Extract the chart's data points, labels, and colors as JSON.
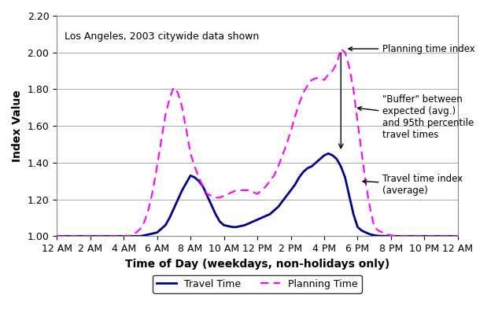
{
  "title_annotation": "Los Angeles, 2003 citywide data shown",
  "xlabel": "Time of Day (weekdays, non-holidays only)",
  "ylabel": "Index Value",
  "ylim": [
    1.0,
    2.2
  ],
  "yticks": [
    1.0,
    1.2,
    1.4,
    1.6,
    1.8,
    2.0,
    2.2
  ],
  "xtick_labels": [
    "12 AM",
    "2 AM",
    "4 AM",
    "6 AM",
    "8 AM",
    "10 AM",
    "12 PM",
    "2 PM",
    "4 PM",
    "6 PM",
    "8 PM",
    "10 PM",
    "12 AM"
  ],
  "travel_time_color": "#00008B",
  "planning_time_color": "#FF00FF",
  "background_color": "#FFFFFF",
  "legend_travel": "Travel Time",
  "legend_planning": "Planning Time",
  "annotation_planning": "Planning time index",
  "annotation_buffer": "\"Buffer\" between\nexpected (avg.)\nand 95th percentile\ntravel times",
  "annotation_travel": "Travel time index\n(average)",
  "travel_time_x": [
    0,
    1,
    2,
    3,
    4,
    4.5,
    5,
    5.5,
    6,
    6.25,
    6.5,
    6.75,
    7,
    7.25,
    7.5,
    7.75,
    8,
    8.25,
    8.5,
    8.75,
    9,
    9.25,
    9.5,
    9.75,
    10,
    10.25,
    10.5,
    10.75,
    11,
    11.25,
    11.5,
    11.75,
    12,
    12.25,
    12.5,
    12.75,
    13,
    13.25,
    13.5,
    13.75,
    14,
    14.25,
    14.5,
    14.75,
    15,
    15.25,
    15.5,
    15.75,
    16,
    16.25,
    16.5,
    16.75,
    17,
    17.25,
    17.5,
    17.75,
    18,
    18.25,
    18.5,
    18.75,
    19,
    19.25,
    19.5,
    19.75,
    20,
    20.25,
    20.5,
    20.75,
    21,
    21.5,
    22,
    22.5,
    23,
    23.5,
    24
  ],
  "travel_time_y": [
    1.0,
    1.0,
    1.0,
    1.0,
    1.0,
    1.0,
    1.0,
    1.01,
    1.02,
    1.04,
    1.06,
    1.1,
    1.15,
    1.2,
    1.25,
    1.29,
    1.33,
    1.32,
    1.3,
    1.27,
    1.22,
    1.17,
    1.12,
    1.08,
    1.06,
    1.055,
    1.05,
    1.05,
    1.055,
    1.06,
    1.07,
    1.08,
    1.09,
    1.1,
    1.11,
    1.12,
    1.14,
    1.16,
    1.19,
    1.22,
    1.25,
    1.28,
    1.32,
    1.35,
    1.37,
    1.38,
    1.4,
    1.42,
    1.44,
    1.45,
    1.44,
    1.42,
    1.38,
    1.32,
    1.22,
    1.12,
    1.05,
    1.03,
    1.02,
    1.01,
    1.005,
    1.002,
    1.001,
    1.001,
    1.0,
    1.0,
    1.0,
    1.0,
    1.0,
    1.0,
    1.0,
    1.0,
    1.0,
    1.0,
    1.0
  ],
  "planning_time_x": [
    0,
    1,
    2,
    3,
    4,
    4.25,
    4.5,
    4.75,
    5,
    5.25,
    5.5,
    5.75,
    6,
    6.25,
    6.5,
    6.75,
    7,
    7.25,
    7.5,
    7.75,
    8,
    8.25,
    8.5,
    8.75,
    9,
    9.25,
    9.5,
    9.75,
    10,
    10.25,
    10.5,
    10.75,
    11,
    11.25,
    11.5,
    11.75,
    12,
    12.25,
    12.5,
    12.75,
    13,
    13.25,
    13.5,
    13.75,
    14,
    14.25,
    14.5,
    14.75,
    15,
    15.25,
    15.5,
    15.75,
    16,
    16.25,
    16.5,
    16.75,
    17,
    17.25,
    17.5,
    17.75,
    18,
    18.25,
    18.5,
    18.75,
    19,
    19.25,
    19.5,
    19.75,
    20,
    20.25,
    20.5,
    20.75,
    21,
    21.5,
    22,
    22.5,
    23,
    23.5,
    24
  ],
  "planning_time_y": [
    1.0,
    1.0,
    1.0,
    1.0,
    1.0,
    1.0,
    1.01,
    1.02,
    1.04,
    1.08,
    1.15,
    1.25,
    1.38,
    1.52,
    1.66,
    1.75,
    1.81,
    1.78,
    1.7,
    1.58,
    1.45,
    1.38,
    1.32,
    1.27,
    1.23,
    1.22,
    1.21,
    1.21,
    1.22,
    1.23,
    1.24,
    1.25,
    1.25,
    1.25,
    1.25,
    1.24,
    1.23,
    1.25,
    1.27,
    1.3,
    1.33,
    1.38,
    1.44,
    1.5,
    1.57,
    1.65,
    1.72,
    1.78,
    1.82,
    1.85,
    1.86,
    1.86,
    1.85,
    1.88,
    1.9,
    1.94,
    2.02,
    2.0,
    1.92,
    1.8,
    1.62,
    1.45,
    1.28,
    1.15,
    1.05,
    1.03,
    1.02,
    1.01,
    1.005,
    1.002,
    1.001,
    1.001,
    1.0,
    1.0,
    1.0,
    1.0,
    1.0,
    1.0,
    1.0
  ]
}
